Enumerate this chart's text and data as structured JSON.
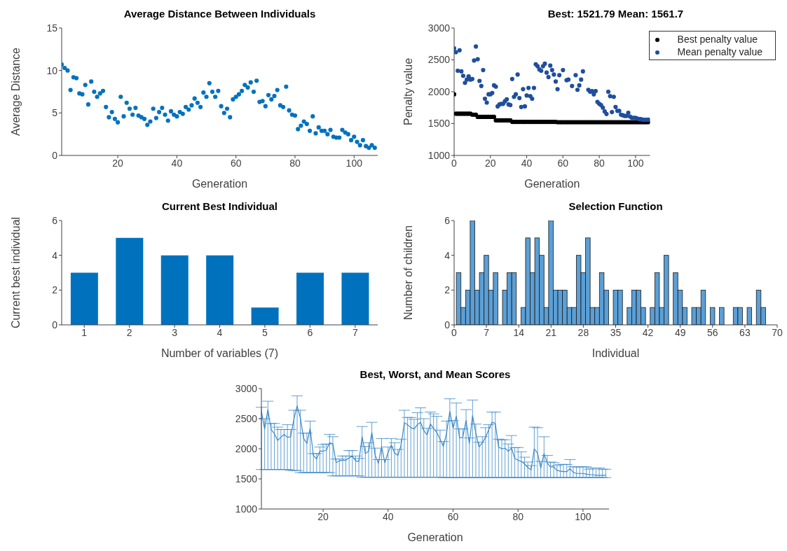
{
  "chart_data": [
    {
      "type": "scatter",
      "title": "Average Distance Between Individuals",
      "xlabel": "Generation",
      "ylabel": "Average Distance",
      "xlim": [
        1,
        108
      ],
      "xticks": [
        20,
        40,
        60,
        80,
        100
      ],
      "ylim": [
        0,
        15
      ],
      "yticks": [
        0,
        5,
        10,
        15
      ],
      "x": [
        1,
        2,
        3,
        4,
        5,
        6,
        7,
        8,
        9,
        10,
        11,
        12,
        13,
        14,
        15,
        16,
        17,
        18,
        19,
        20,
        21,
        22,
        23,
        24,
        25,
        26,
        27,
        28,
        29,
        30,
        31,
        32,
        33,
        34,
        35,
        36,
        37,
        38,
        39,
        40,
        41,
        42,
        43,
        44,
        45,
        46,
        47,
        48,
        49,
        50,
        51,
        52,
        53,
        54,
        55,
        56,
        57,
        58,
        59,
        60,
        61,
        62,
        63,
        64,
        65,
        66,
        67,
        68,
        69,
        70,
        71,
        72,
        73,
        74,
        75,
        76,
        77,
        78,
        79,
        80,
        81,
        82,
        83,
        84,
        85,
        86,
        87,
        88,
        89,
        90,
        91,
        92,
        93,
        94,
        95,
        96,
        97,
        98,
        99,
        100,
        101,
        102,
        103,
        104,
        105,
        106,
        107
      ],
      "series": [
        {
          "color": "#0072bd",
          "values": [
            10.7,
            10.3,
            10.0,
            7.7,
            9.2,
            9.1,
            7.3,
            7.2,
            8.3,
            6.0,
            8.7,
            7.5,
            6.9,
            7.3,
            7.6,
            5.7,
            4.5,
            5.1,
            4.3,
            3.9,
            6.9,
            4.6,
            6.2,
            5.5,
            4.8,
            5.6,
            4.7,
            4.5,
            4.3,
            3.6,
            4.0,
            5.5,
            4.4,
            5.1,
            5.6,
            4.8,
            4.1,
            5.2,
            4.8,
            4.6,
            5.1,
            4.9,
            5.7,
            5.4,
            5.9,
            6.7,
            6.2,
            5.7,
            7.4,
            6.9,
            8.5,
            7.5,
            6.9,
            7.6,
            5.8,
            5.0,
            5.5,
            4.5,
            6.6,
            6.9,
            7.2,
            7.6,
            8.3,
            8.0,
            8.6,
            7.5,
            8.8,
            6.3,
            6.4,
            5.8,
            7.1,
            6.6,
            7.0,
            7.7,
            5.9,
            5.7,
            8.1,
            5.3,
            4.8,
            4.7,
            3.1,
            3.5,
            4.0,
            3.7,
            2.9,
            4.6,
            2.6,
            3.3,
            2.9,
            2.9,
            2.5,
            3.0,
            2.2,
            2.1,
            2.1,
            3.0,
            2.7,
            2.5,
            1.8,
            2.2,
            1.6,
            1.2,
            1.8,
            1.1,
            0.9,
            1.2,
            0.9
          ]
        }
      ]
    },
    {
      "type": "scatter",
      "title": "Best: 1521.79 Mean: 1561.7",
      "xlabel": "Generation",
      "ylabel": "Penalty value",
      "xlim": [
        0,
        108
      ],
      "xticks": [
        0,
        20,
        40,
        60,
        80,
        100
      ],
      "ylim": [
        1000,
        3000
      ],
      "yticks": [
        1000,
        1500,
        2000,
        2500,
        3000
      ],
      "legend": "top right",
      "x": [
        0,
        1,
        2,
        3,
        4,
        5,
        6,
        7,
        8,
        9,
        10,
        11,
        12,
        13,
        14,
        15,
        16,
        17,
        18,
        19,
        20,
        21,
        22,
        23,
        24,
        25,
        26,
        27,
        28,
        29,
        30,
        31,
        32,
        33,
        34,
        35,
        36,
        37,
        38,
        39,
        40,
        41,
        42,
        43,
        44,
        45,
        46,
        47,
        48,
        49,
        50,
        51,
        52,
        53,
        54,
        55,
        56,
        57,
        58,
        59,
        60,
        61,
        62,
        63,
        64,
        65,
        66,
        67,
        68,
        69,
        70,
        71,
        72,
        73,
        74,
        75,
        76,
        77,
        78,
        79,
        80,
        81,
        82,
        83,
        84,
        85,
        86,
        87,
        88,
        89,
        90,
        91,
        92,
        93,
        94,
        95,
        96,
        97,
        98,
        99,
        100,
        101,
        102,
        103,
        104,
        105,
        106,
        107
      ],
      "series": [
        {
          "name": "Best penalty value",
          "color": "#000000",
          "values": [
            1960,
            1655,
            1655,
            1655,
            1655,
            1655,
            1655,
            1655,
            1655,
            1655,
            1640,
            1640,
            1640,
            1605,
            1605,
            1605,
            1605,
            1605,
            1605,
            1605,
            1605,
            1605,
            1605,
            1550,
            1550,
            1550,
            1550,
            1550,
            1550,
            1550,
            1550,
            1550,
            1527,
            1527,
            1527,
            1527,
            1527,
            1527,
            1527,
            1527,
            1527,
            1527,
            1527,
            1527,
            1527,
            1527,
            1527,
            1527,
            1527,
            1527,
            1527,
            1527,
            1527,
            1527,
            1527,
            1527,
            1527,
            1522,
            1522,
            1522,
            1522,
            1522,
            1522,
            1522,
            1522,
            1522,
            1522,
            1522,
            1522,
            1522,
            1522,
            1522,
            1522,
            1522,
            1522,
            1522,
            1522,
            1522,
            1522,
            1522,
            1522,
            1522,
            1522,
            1522,
            1522,
            1522,
            1522,
            1522,
            1522,
            1522,
            1522,
            1522,
            1522,
            1522,
            1522,
            1522,
            1522,
            1522,
            1522,
            1522,
            1522,
            1522,
            1522,
            1522,
            1522,
            1522,
            1522,
            1522
          ]
        },
        {
          "name": "Mean penalty value",
          "color": "#1f4e9c",
          "values": [
            2680,
            2620,
            2330,
            2650,
            2320,
            2250,
            2140,
            2190,
            2240,
            2190,
            2200,
            2490,
            2710,
            2510,
            2170,
            2090,
            2340,
            1890,
            1830,
            1960,
            1960,
            1980,
            2100,
            2080,
            1770,
            1800,
            1810,
            1810,
            1850,
            1880,
            1800,
            1790,
            2200,
            1920,
            1960,
            2270,
            1900,
            1760,
            2040,
            1770,
            1940,
            2060,
            1930,
            1890,
            2060,
            2430,
            2400,
            2350,
            2330,
            2400,
            2440,
            2300,
            2230,
            2410,
            2340,
            2270,
            2160,
            2040,
            2260,
            null,
            2340,
            null,
            2180,
            2190,
            null,
            2090,
            null,
            2260,
            2030,
            2100,
            2190,
            2320,
            null,
            null,
            2030,
            2000,
            2010,
            1960,
            2010,
            1840,
            1810,
            1790,
            1750,
            1690,
            1650,
            2000,
            1930,
            1680,
            1920,
            1760,
            1700,
            1700,
            1640,
            1630,
            1620,
            1620,
            1670,
            1610,
            1590,
            1590,
            1590,
            1580,
            1570,
            1570,
            1560,
            1560,
            1560,
            1562
          ]
        }
      ]
    },
    {
      "type": "bar",
      "title": "Current Best Individual",
      "xlabel": "Number of variables (7)",
      "ylabel": "Current best individual",
      "categories": [
        "1",
        "2",
        "3",
        "4",
        "5",
        "6",
        "7"
      ],
      "values": [
        3,
        5,
        4,
        4,
        1,
        3,
        3
      ],
      "color": "#0072bd",
      "ylim": [
        0,
        6
      ],
      "yticks": [
        0,
        2,
        4,
        6
      ]
    },
    {
      "type": "histogram",
      "title": "Selection Function",
      "xlabel": "Individual",
      "ylabel": "Number of children",
      "color": "#5b9fd6",
      "xlim": [
        0,
        70
      ],
      "xticks": [
        0,
        7,
        14,
        21,
        28,
        35,
        42,
        49,
        56,
        63,
        70
      ],
      "ylim": [
        0,
        6
      ],
      "yticks": [
        0,
        2,
        4,
        6
      ],
      "bins": [
        0.5,
        1.5,
        2.5,
        3.5,
        4.5,
        5.5,
        6.5,
        7.5,
        8.5,
        9.5,
        10.5,
        11.5,
        12.5,
        13.5,
        14.5,
        15.5,
        16.5,
        17.5,
        18.5,
        19.5,
        20.5,
        21.5,
        22.5,
        23.5,
        24.5,
        25.5,
        26.5,
        27.5,
        28.5,
        29.5,
        30.5,
        31.5,
        32.5,
        33.5,
        34.5,
        35.5,
        36.5,
        37.5,
        38.5,
        39.5,
        40.5,
        41.5,
        42.5,
        43.5,
        44.5,
        45.5,
        46.5,
        47.5,
        48.5,
        49.5,
        50.5,
        51.5,
        52.5,
        53.5,
        54.5,
        55.5,
        56.5,
        57.5,
        58.5,
        59.5,
        60.5,
        61.5,
        62.5,
        63.5,
        64.5,
        65.5,
        66.5,
        67.5
      ],
      "values": [
        3,
        1,
        2,
        6,
        2,
        3,
        4,
        2,
        3,
        0,
        2,
        3,
        3,
        0,
        1,
        5,
        3,
        5,
        4,
        1,
        6,
        2,
        2,
        2,
        1,
        1,
        4,
        3,
        5,
        1,
        1,
        3,
        2,
        0,
        2,
        2,
        0,
        1,
        2,
        2,
        1,
        0,
        1,
        3,
        1,
        4,
        0,
        3,
        2,
        1,
        0,
        1,
        1,
        2,
        0,
        1,
        0,
        1,
        0,
        0,
        1,
        1,
        0,
        1,
        0,
        2,
        1
      ]
    },
    {
      "type": "line",
      "title": "Best, Worst, and Mean Scores",
      "xlabel": "Generation",
      "xlim": [
        1,
        108
      ],
      "xticks": [
        20,
        40,
        60,
        80,
        100
      ],
      "ylim": [
        1000,
        3000
      ],
      "yticks": [
        1000,
        1500,
        2000,
        2500,
        3000
      ],
      "x": [
        1,
        2,
        3,
        4,
        5,
        6,
        7,
        8,
        9,
        10,
        11,
        12,
        13,
        14,
        15,
        16,
        17,
        18,
        19,
        20,
        21,
        22,
        23,
        24,
        25,
        26,
        27,
        28,
        29,
        30,
        31,
        32,
        33,
        34,
        35,
        36,
        37,
        38,
        39,
        40,
        41,
        42,
        43,
        44,
        45,
        46,
        47,
        48,
        49,
        50,
        51,
        52,
        53,
        54,
        55,
        56,
        57,
        58,
        59,
        60,
        61,
        62,
        63,
        64,
        65,
        66,
        67,
        68,
        69,
        70,
        71,
        72,
        73,
        74,
        75,
        76,
        77,
        78,
        79,
        80,
        81,
        82,
        83,
        84,
        85,
        86,
        87,
        88,
        89,
        90,
        91,
        92,
        93,
        94,
        95,
        96,
        97,
        98,
        99,
        100,
        101,
        102,
        103,
        104,
        105,
        106,
        107
      ],
      "series": [
        {
          "color": "#3a88c6",
          "values": [
            2620,
            2330,
            2650,
            2320,
            2250,
            2140,
            2190,
            2240,
            2190,
            2200,
            2490,
            2710,
            2510,
            2170,
            2090,
            2340,
            1890,
            1830,
            1960,
            1960,
            1980,
            2100,
            2080,
            1770,
            1800,
            1810,
            1810,
            1850,
            1880,
            1800,
            1790,
            2200,
            1920,
            1960,
            2270,
            1900,
            1760,
            2040,
            1770,
            1940,
            2060,
            1930,
            1890,
            2060,
            2430,
            2400,
            2350,
            2330,
            2400,
            2440,
            2300,
            2230,
            2410,
            2340,
            2270,
            2160,
            2040,
            2260,
            2620,
            2340,
            2540,
            2180,
            2190,
            2470,
            2090,
            2550,
            2260,
            2030,
            2100,
            2190,
            2320,
            2440,
            2420,
            2030,
            2000,
            2010,
            1960,
            2010,
            1840,
            1810,
            1790,
            1750,
            1690,
            1650,
            2000,
            1930,
            1680,
            1920,
            1760,
            1700,
            1700,
            1640,
            1630,
            1620,
            1620,
            1670,
            1610,
            1590,
            1590,
            1590,
            1580,
            1570,
            1570,
            1560,
            1560,
            1560,
            1562
          ],
          "errors": [
            [
              1655,
              2690
            ],
            [
              1655,
              2500
            ],
            [
              1655,
              2790
            ],
            [
              1655,
              2420
            ],
            [
              1655,
              2420
            ],
            [
              1655,
              2360
            ],
            [
              1655,
              2320
            ],
            [
              1655,
              2320
            ],
            [
              1655,
              2400
            ],
            [
              1640,
              2320
            ],
            [
              1640,
              2640
            ],
            [
              1640,
              2880
            ],
            [
              1605,
              2640
            ],
            [
              1605,
              2260
            ],
            [
              1605,
              2260
            ],
            [
              1605,
              2460
            ],
            [
              1605,
              1920
            ],
            [
              1605,
              1920
            ],
            [
              1605,
              2030
            ],
            [
              1605,
              2070
            ],
            [
              1605,
              2080
            ],
            [
              1605,
              2240
            ],
            [
              1550,
              2200
            ],
            [
              1550,
              1830
            ],
            [
              1550,
              1830
            ],
            [
              1550,
              1880
            ],
            [
              1550,
              1880
            ],
            [
              1550,
              1970
            ],
            [
              1550,
              1970
            ],
            [
              1550,
              1880
            ],
            [
              1550,
              1840
            ],
            [
              1527,
              2370
            ],
            [
              1527,
              2040
            ],
            [
              1527,
              2100
            ],
            [
              1527,
              2440
            ],
            [
              1527,
              2010
            ],
            [
              1527,
              1820
            ],
            [
              1527,
              2170
            ],
            [
              1527,
              1820
            ],
            [
              1527,
              2030
            ],
            [
              1527,
              2170
            ],
            [
              1527,
              2100
            ],
            [
              1527,
              1990
            ],
            [
              1527,
              2160
            ],
            [
              1527,
              2640
            ],
            [
              1527,
              2520
            ],
            [
              1527,
              2520
            ],
            [
              1527,
              2490
            ],
            [
              1527,
              2600
            ],
            [
              1527,
              2680
            ],
            [
              1527,
              2500
            ],
            [
              1527,
              2340
            ],
            [
              1527,
              2610
            ],
            [
              1527,
              2580
            ],
            [
              1527,
              2540
            ],
            [
              1527,
              2310
            ],
            [
              1522,
              2120
            ],
            [
              1522,
              2460
            ],
            [
              1522,
              2830
            ],
            [
              1522,
              2470
            ],
            [
              1522,
              2760
            ],
            [
              1522,
              2330
            ],
            [
              1522,
              2330
            ],
            [
              1522,
              2650
            ],
            [
              1522,
              2180
            ],
            [
              1522,
              2810
            ],
            [
              1522,
              2410
            ],
            [
              1522,
              2110
            ],
            [
              1522,
              2200
            ],
            [
              1522,
              2350
            ],
            [
              1522,
              2400
            ],
            [
              1522,
              2610
            ],
            [
              1522,
              2610
            ],
            [
              1522,
              2160
            ],
            [
              1522,
              2150
            ],
            [
              1522,
              2150
            ],
            [
              1522,
              2080
            ],
            [
              1522,
              2220
            ],
            [
              1522,
              2020
            ],
            [
              1522,
              2020
            ],
            [
              1522,
              1950
            ],
            [
              1522,
              1860
            ],
            [
              1522,
              1780
            ],
            [
              1522,
              1720
            ],
            [
              1522,
              2360
            ],
            [
              1522,
              2350
            ],
            [
              1522,
              1790
            ],
            [
              1522,
              2200
            ],
            [
              1522,
              1890
            ],
            [
              1522,
              1780
            ],
            [
              1522,
              1770
            ],
            [
              1522,
              1720
            ],
            [
              1522,
              1740
            ],
            [
              1522,
              1740
            ],
            [
              1522,
              1740
            ],
            [
              1522,
              1820
            ],
            [
              1522,
              1700
            ],
            [
              1522,
              1700
            ],
            [
              1522,
              1700
            ],
            [
              1522,
              1700
            ],
            [
              1522,
              1700
            ],
            [
              1522,
              1660
            ],
            [
              1522,
              1680
            ],
            [
              1522,
              1680
            ],
            [
              1522,
              1680
            ],
            [
              1522,
              1660
            ],
            [
              1522,
              1660
            ]
          ]
        }
      ]
    }
  ]
}
